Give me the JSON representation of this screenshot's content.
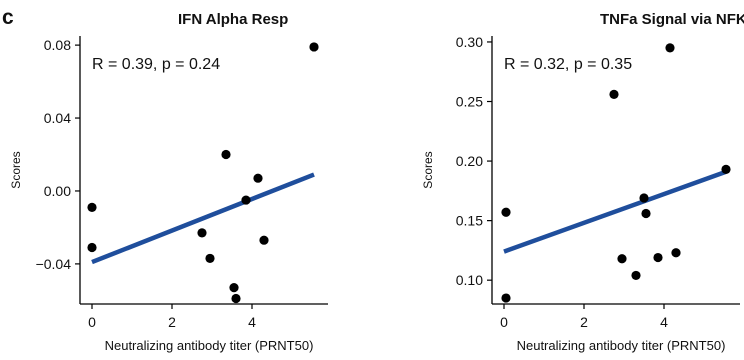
{
  "panel_letter": "c",
  "chart_data": [
    {
      "type": "scatter",
      "title": "IFN Alpha Resp",
      "xlabel": "Neutralizing antibody titer (PRNT50)",
      "ylabel": "Scores",
      "annotation": "R = 0.39, p = 0.24",
      "xlim": [
        -0.3,
        5.9
      ],
      "ylim": [
        -0.062,
        0.085
      ],
      "xticks": [
        0,
        2,
        4
      ],
      "yticks": [
        -0.04,
        0.0,
        0.04,
        0.08
      ],
      "ytick_labels": [
        "−0.04",
        "0.00",
        "0.04",
        "0.08"
      ],
      "points": [
        {
          "x": 0.0,
          "y": -0.009
        },
        {
          "x": 0.0,
          "y": -0.031
        },
        {
          "x": 2.75,
          "y": -0.023
        },
        {
          "x": 2.95,
          "y": -0.037
        },
        {
          "x": 3.35,
          "y": 0.02
        },
        {
          "x": 3.55,
          "y": -0.053
        },
        {
          "x": 3.6,
          "y": -0.059
        },
        {
          "x": 3.85,
          "y": -0.005
        },
        {
          "x": 4.15,
          "y": 0.007
        },
        {
          "x": 4.3,
          "y": -0.027
        },
        {
          "x": 5.55,
          "y": 0.079
        }
      ],
      "fit_line": {
        "x": [
          0.0,
          5.55
        ],
        "y": [
          -0.039,
          0.009
        ]
      },
      "grid": false
    },
    {
      "type": "scatter",
      "title": "TNFa Signal via NFKB",
      "xlabel": "Neutralizing antibody titer (PRNT50)",
      "ylabel": "Scores",
      "annotation": "R = 0.32, p = 0.35",
      "xlim": [
        -0.3,
        5.9
      ],
      "ylim": [
        0.08,
        0.305
      ],
      "xticks": [
        0,
        2,
        4
      ],
      "yticks": [
        0.1,
        0.15,
        0.2,
        0.25,
        0.3
      ],
      "ytick_labels": [
        "0.10",
        "0.15",
        "0.20",
        "0.25",
        "0.30"
      ],
      "points": [
        {
          "x": 0.05,
          "y": 0.157
        },
        {
          "x": 0.05,
          "y": 0.085
        },
        {
          "x": 2.75,
          "y": 0.256
        },
        {
          "x": 2.95,
          "y": 0.118
        },
        {
          "x": 3.3,
          "y": 0.104
        },
        {
          "x": 3.5,
          "y": 0.169
        },
        {
          "x": 3.55,
          "y": 0.156
        },
        {
          "x": 3.85,
          "y": 0.119
        },
        {
          "x": 4.15,
          "y": 0.295
        },
        {
          "x": 4.3,
          "y": 0.123
        },
        {
          "x": 5.55,
          "y": 0.193
        }
      ],
      "fit_line": {
        "x": [
          0.0,
          5.55
        ],
        "y": [
          0.124,
          0.191
        ]
      },
      "grid": false
    }
  ],
  "colors": {
    "points": "#000000",
    "fit_line": "#1f4e9c",
    "axis": "#000000",
    "text": "#111111"
  }
}
